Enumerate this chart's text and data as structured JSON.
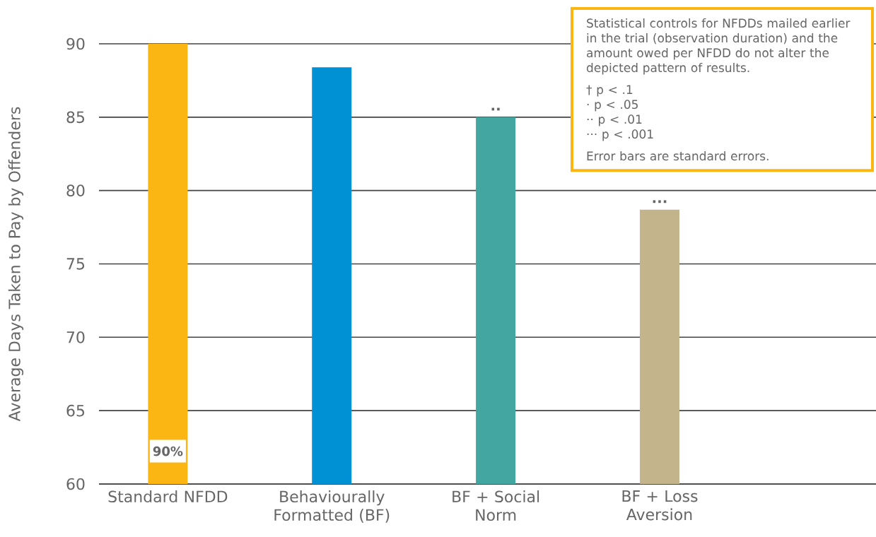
{
  "chart_data": {
    "type": "bar",
    "ylabel": "Average Days Taken to Pay by Offenders",
    "categories": [
      "Standard NFDD",
      "Behaviourally Formatted (BF)",
      "BF + Social Norm",
      "BF + Loss Aversion"
    ],
    "values": [
      90,
      88.4,
      85,
      78.7
    ],
    "colors": [
      "#fbb614",
      "#0091d5",
      "#44a6a0",
      "#c4b48b"
    ],
    "value_labels": [
      "90%",
      null,
      null,
      null
    ],
    "ylim": [
      60,
      90
    ],
    "yticks": [
      60,
      65,
      70,
      75,
      80,
      85,
      90
    ],
    "grid": "y",
    "annotations": [
      {
        "text": "··",
        "x": "BF + Social Norm",
        "y": 85
      },
      {
        "text": "···",
        "x": "BF + Loss Aversion",
        "y": 78.7
      },
      "Statistical controls for NFDDs mailed earlier in the trial (observation duration) and the amount owed per NFDD do not alter the depicted pattern of results.",
      "† p < .1",
      "· p < .05",
      "·· p < .01",
      "··· p < .001",
      "Error bars are standard errors."
    ]
  }
}
